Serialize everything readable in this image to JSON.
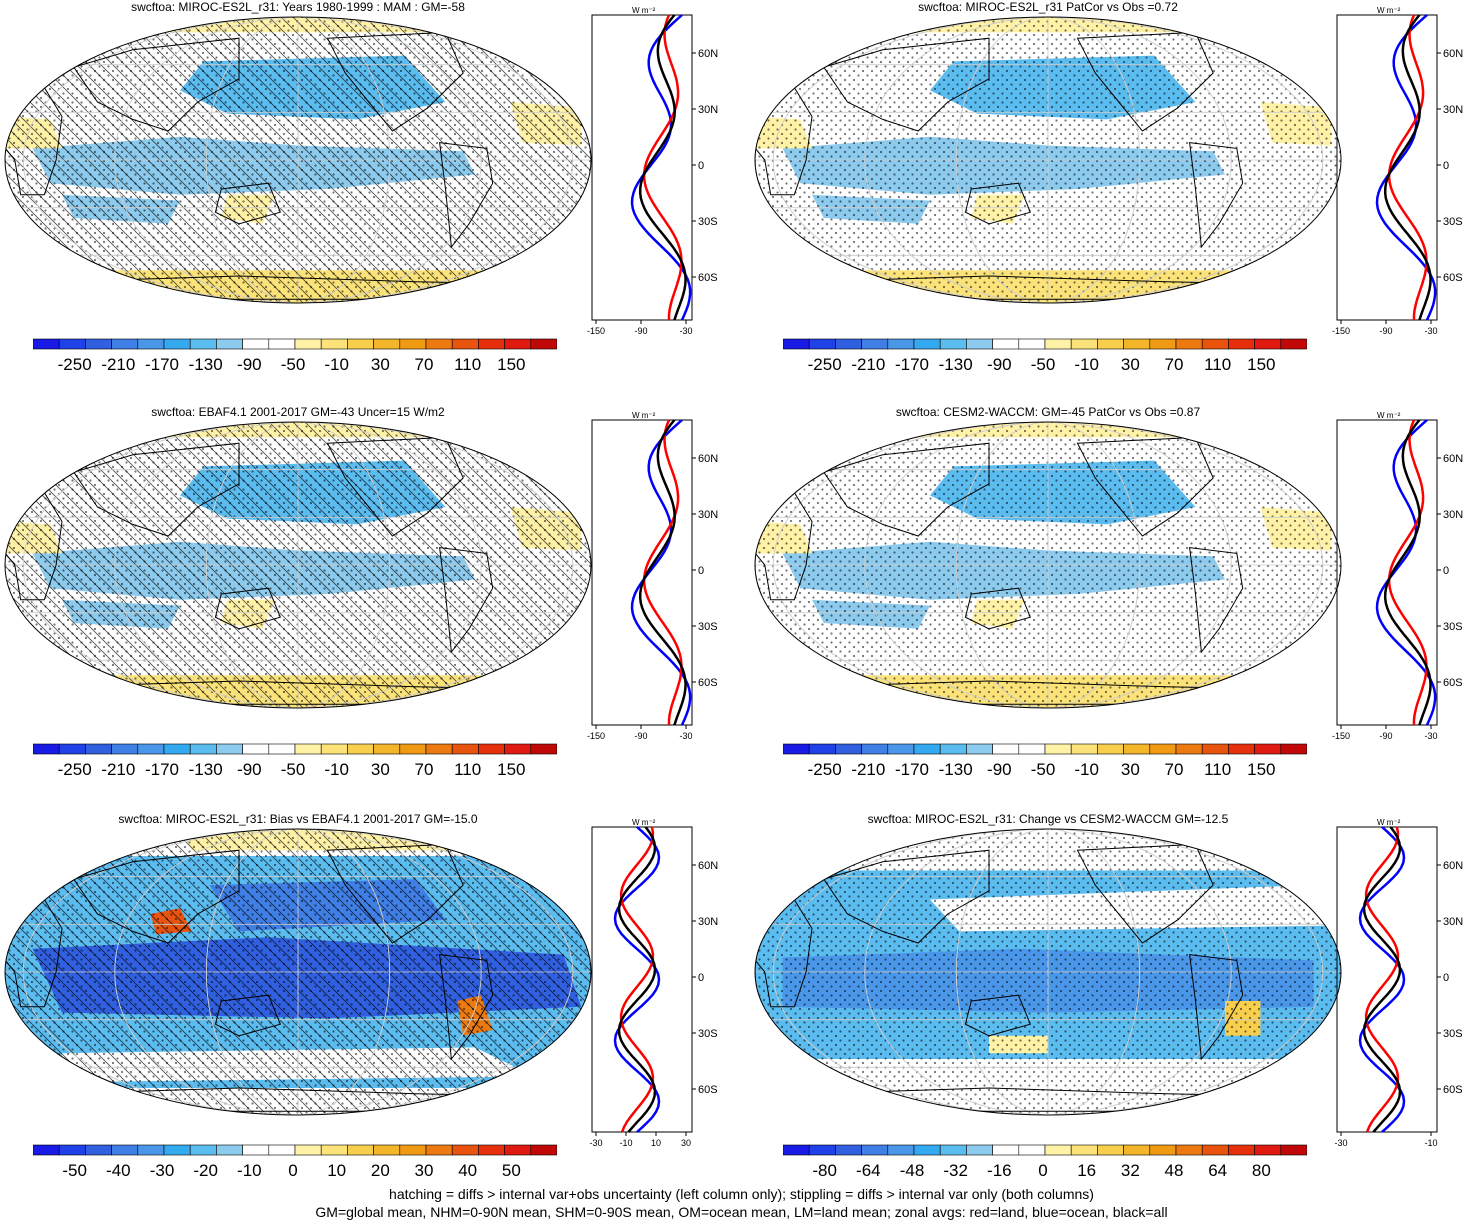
{
  "panels": [
    {
      "id": "p1",
      "title": "swcftoa: MIROC-ES2L_r31: Years 1980-1999 : MAM : GM=-58",
      "colorbar_labels": [
        "-250",
        "-210",
        "-170",
        "-130",
        "-90",
        "-50",
        "-10",
        "30",
        "70",
        "110",
        "150"
      ],
      "zonal_unit": "W m⁻²",
      "zonal_xticks": [
        "-150",
        "-90",
        "-30"
      ],
      "zonal_lat_labels": [
        "60N",
        "30N",
        "0",
        "30S",
        "60S"
      ],
      "hatching": true,
      "stippling": true,
      "kind": "abs"
    },
    {
      "id": "p2",
      "title": "swcftoa: MIROC-ES2L_r31 PatCor vs Obs =0.72",
      "colorbar_labels": [
        "-250",
        "-210",
        "-170",
        "-130",
        "-90",
        "-50",
        "-10",
        "30",
        "70",
        "110",
        "150"
      ],
      "zonal_unit": "W m⁻²",
      "zonal_xticks": [
        "-150",
        "-90",
        "-30"
      ],
      "zonal_lat_labels": [
        "60N",
        "30N",
        "0",
        "30S",
        "60S"
      ],
      "hatching": false,
      "stippling": true,
      "kind": "abs"
    },
    {
      "id": "p3",
      "title": "swcftoa: EBAF4.1 2001-2017 GM=-43 Uncer=15 W/m2",
      "colorbar_labels": [
        "-250",
        "-210",
        "-170",
        "-130",
        "-90",
        "-50",
        "-10",
        "30",
        "70",
        "110",
        "150"
      ],
      "zonal_unit": "W m⁻²",
      "zonal_xticks": [
        "-150",
        "-90",
        "-30"
      ],
      "zonal_lat_labels": [
        "60N",
        "30N",
        "0",
        "30S",
        "60S"
      ],
      "hatching": true,
      "stippling": true,
      "kind": "abs"
    },
    {
      "id": "p4",
      "title": "swcftoa: CESM2-WACCM: GM=-45 PatCor vs Obs =0.87",
      "colorbar_labels": [
        "-250",
        "-210",
        "-170",
        "-130",
        "-90",
        "-50",
        "-10",
        "30",
        "70",
        "110",
        "150"
      ],
      "zonal_unit": "W m⁻²",
      "zonal_xticks": [
        "-150",
        "-90",
        "-30"
      ],
      "zonal_lat_labels": [
        "60N",
        "30N",
        "0",
        "30S",
        "60S"
      ],
      "hatching": false,
      "stippling": true,
      "kind": "abs"
    },
    {
      "id": "p5",
      "title": "swcftoa: MIROC-ES2L_r31: Bias vs EBAF4.1 2001-2017 GM=-15.0",
      "colorbar_labels": [
        "-50",
        "-40",
        "-30",
        "-20",
        "-10",
        "0",
        "10",
        "20",
        "30",
        "40",
        "50"
      ],
      "zonal_unit": "W m⁻²",
      "zonal_xticks": [
        "-30",
        "-10",
        "10",
        "30"
      ],
      "zonal_lat_labels": [
        "60N",
        "30N",
        "0",
        "30S",
        "60S"
      ],
      "hatching": true,
      "stippling": true,
      "kind": "bias"
    },
    {
      "id": "p6",
      "title": "swcftoa: MIROC-ES2L_r31: Change vs CESM2-WACCM GM=-12.5",
      "colorbar_labels": [
        "-80",
        "-64",
        "-48",
        "-32",
        "-16",
        "0",
        "16",
        "32",
        "48",
        "64",
        "80"
      ],
      "zonal_unit": "W m⁻²",
      "zonal_xticks": [
        "-30",
        "-10"
      ],
      "zonal_lat_labels": [
        "60N",
        "30N",
        "0",
        "30S",
        "60S"
      ],
      "hatching": false,
      "stippling": true,
      "kind": "change"
    }
  ],
  "colors": {
    "scale": [
      "#1a1ae6",
      "#2040e8",
      "#3060e0",
      "#3f7fe6",
      "#4a97ea",
      "#33aaf0",
      "#5bbcf0",
      "#8ccbee",
      "#ffffff",
      "#ffffff",
      "#fff2a6",
      "#fbe37a",
      "#f7cf4d",
      "#f3b52a",
      "#f09a14",
      "#ec7a10",
      "#e8540e",
      "#e6300c",
      "#e01a10",
      "#c00808"
    ],
    "land_line": "#000000",
    "zonal_land": "#ff0000",
    "zonal_ocean": "#0000ff",
    "zonal_all": "#000000"
  },
  "footer": {
    "line1": "hatching = diffs > internal var+obs uncertainty (left column only); stippling = diffs > internal var only (both columns)",
    "line2": "GM=global mean, NHM=0-90N mean, SHM=0-90S mean, OM=ocean mean, LM=land mean; zonal avgs: red=land, blue=ocean, black=all"
  }
}
